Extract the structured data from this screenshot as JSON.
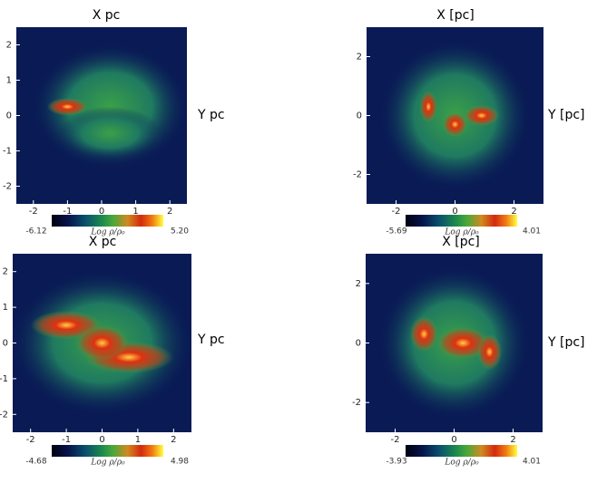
{
  "panels": [
    {
      "title": "X pc",
      "ylabel": "Y pc",
      "xlim": [
        -2.5,
        2.5
      ],
      "ylim": [
        -2.5,
        2.5
      ],
      "xticks": [
        -2,
        -1,
        0,
        1,
        2
      ],
      "yticks": [
        -2,
        -1,
        0,
        1,
        2
      ],
      "colorbar": {
        "label": "Log ρ/ρ₀",
        "min": -6.12,
        "max": 5.2,
        "max_label": "5.20"
      }
    },
    {
      "title": "X [pc]",
      "ylabel": "Y [pc]",
      "xlim": [
        -3,
        3
      ],
      "ylim": [
        -3,
        3
      ],
      "xticks": [
        -2,
        0,
        2
      ],
      "yticks": [
        -2,
        0,
        2
      ],
      "colorbar": {
        "label": "Log ρ/ρ₀",
        "min": -5.69,
        "max": 4.01,
        "max_label": "4.01"
      }
    },
    {
      "title": "X pc",
      "ylabel": "Y pc",
      "xlim": [
        -2.5,
        2.5
      ],
      "ylim": [
        -2.5,
        2.5
      ],
      "xticks": [
        -2,
        -1,
        0,
        1,
        2
      ],
      "yticks": [
        -2,
        -1,
        0,
        1,
        2
      ],
      "colorbar": {
        "label": "Log ρ/ρ₀",
        "min": -4.68,
        "max": 4.98,
        "max_label": "4.98"
      }
    },
    {
      "title": "X [pc]",
      "ylabel": "Y [pc]",
      "xlim": [
        -3,
        3
      ],
      "ylim": [
        -3,
        3
      ],
      "xticks": [
        -2,
        0,
        2
      ],
      "yticks": [
        -2,
        0,
        2
      ],
      "colorbar": {
        "label": "Log ρ/ρ₀",
        "min": -3.93,
        "max": 4.01,
        "max_label": "4.01"
      }
    }
  ]
}
